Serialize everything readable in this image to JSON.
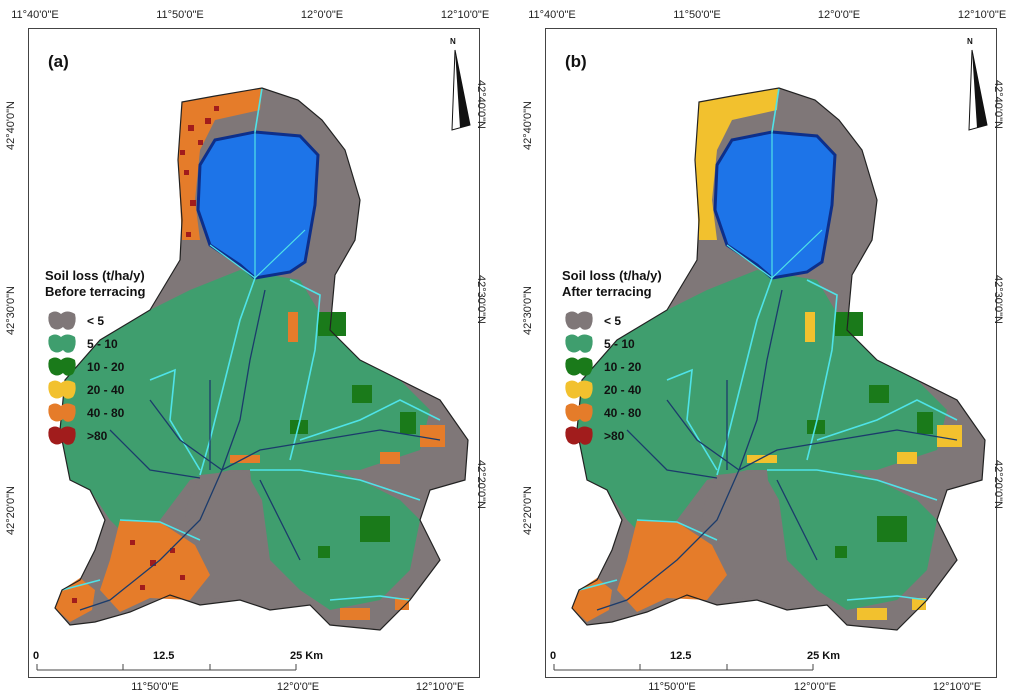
{
  "coordinates": {
    "top": [
      "11°40'0\"E",
      "11°50'0\"E",
      "12°0'0\"E",
      "12°10'0\"E"
    ],
    "bottom": [
      "11°50'0\"E",
      "12°0'0\"E",
      "12°10'0\"E"
    ],
    "left": [
      "42°40'0\"N",
      "42°30'0\"N",
      "42°20'0\"N"
    ],
    "right": [
      "42°40'0\"N",
      "42°30'0\"N",
      "42°20'0\"N"
    ]
  },
  "north_label": "N",
  "scale_bar": {
    "start": "0",
    "mid": "12.5",
    "end": "25 Km"
  },
  "colors": {
    "lt5": "#7f7778",
    "c5_10": "#3f9e6e",
    "c10_20": "#1a7a1a",
    "c20_40": "#f2c12e",
    "c40_80": "#e57c2a",
    "gt80": "#a11c1c",
    "lake": "#1d74e8",
    "lake_border": "#0d2f8a",
    "subbasin": "#4fe3e8",
    "stream": "#1b3b6b"
  },
  "legend_categories": [
    "< 5",
    "5 - 10",
    "10 - 20",
    "20 - 40",
    "40 - 80",
    ">80"
  ],
  "panels": [
    {
      "label": "(a)",
      "legend_title_1": "Soil loss (t/ha/y)",
      "legend_title_2": "Before terracing"
    },
    {
      "label": "(b)",
      "legend_title_1": "Soil loss (t/ha/y)",
      "legend_title_2": "After terracing"
    }
  ]
}
